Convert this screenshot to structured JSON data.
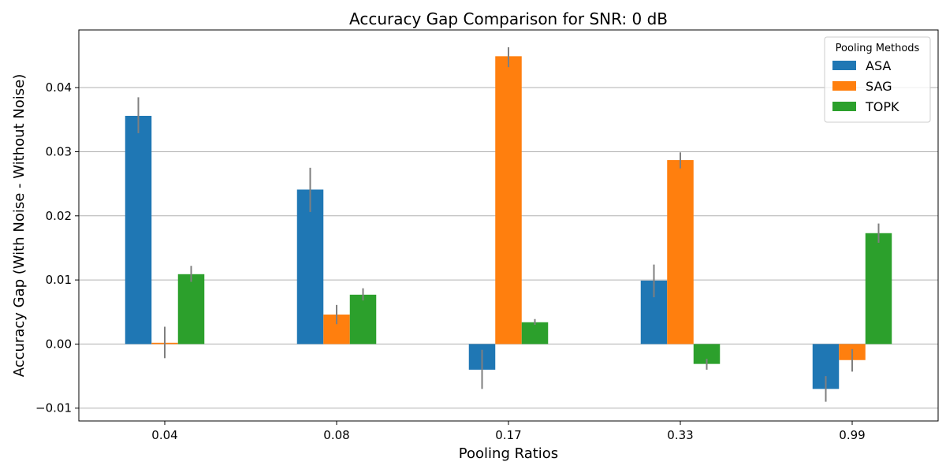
{
  "chart_data": {
    "type": "bar",
    "title": "Accuracy Gap Comparison for SNR: 0 dB",
    "xlabel": "Pooling Ratios",
    "ylabel": "Accuracy Gap (With Noise - Without Noise)",
    "categories": [
      "0.04",
      "0.08",
      "0.17",
      "0.33",
      "0.99"
    ],
    "ylim": [
      -0.012,
      0.049
    ],
    "yticks": [
      -0.01,
      0.0,
      0.01,
      0.02,
      0.03,
      0.04
    ],
    "ytick_labels": [
      "−0.01",
      "0.00",
      "0.01",
      "0.02",
      "0.03",
      "0.04"
    ],
    "grid": "y",
    "legend": {
      "title": "Pooling Methods",
      "position": "top-right"
    },
    "series": [
      {
        "name": "ASA",
        "color": "#1f77b4",
        "values": [
          0.0356,
          0.0241,
          -0.004,
          0.0099,
          -0.007
        ],
        "err_low": [
          0.0329,
          0.0206,
          -0.007,
          0.0073,
          -0.009
        ],
        "err_high": [
          0.0385,
          0.0275,
          -0.0009,
          0.0124,
          -0.005
        ]
      },
      {
        "name": "SAG",
        "color": "#ff7f0e",
        "values": [
          0.0002,
          0.0046,
          0.0449,
          0.0287,
          -0.0025
        ],
        "err_low": [
          -0.0022,
          0.0031,
          0.0432,
          0.0274,
          -0.0043
        ],
        "err_high": [
          0.0027,
          0.0061,
          0.0463,
          0.0299,
          -0.0008
        ]
      },
      {
        "name": "TOPK",
        "color": "#2ca02c",
        "values": [
          0.0109,
          0.0077,
          0.0034,
          -0.0031,
          0.0173
        ],
        "err_low": [
          0.0097,
          0.0068,
          0.003,
          -0.004,
          0.0158
        ],
        "err_high": [
          0.0122,
          0.0087,
          0.0039,
          -0.0023,
          0.0188
        ]
      }
    ],
    "errorbar_color": "#7f7f7f",
    "grid_color": "#b0b0b0"
  }
}
